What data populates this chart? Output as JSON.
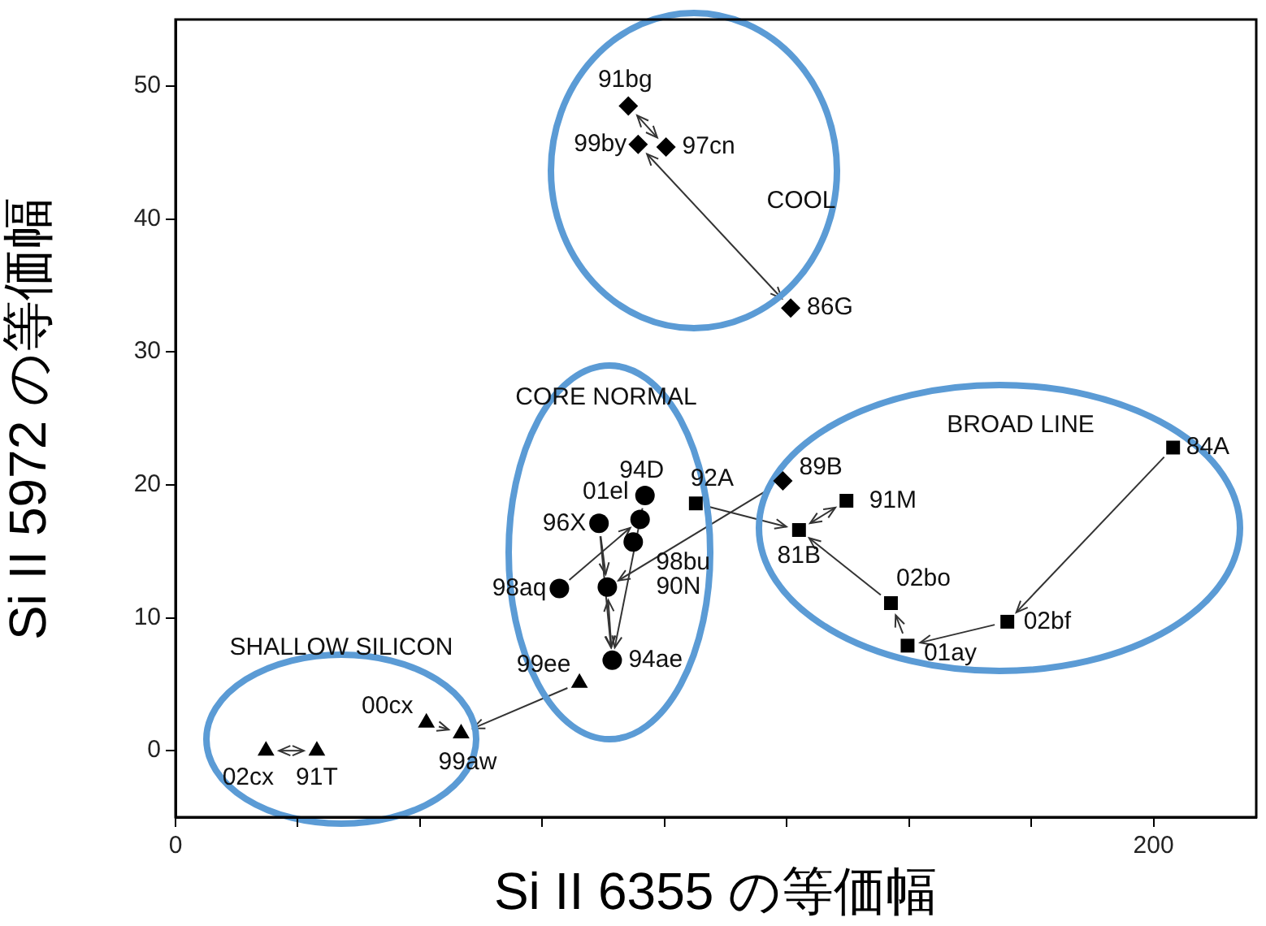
{
  "chart_data": {
    "type": "scatter",
    "xlabel": "Si II 6355 の等価幅",
    "ylabel": "Si II 5972 の等価幅",
    "xlim": [
      0,
      221
    ],
    "ylim": [
      -5,
      55
    ],
    "xticks": [
      0,
      {
        "value": 25,
        "label": null
      },
      {
        "value": 50,
        "label": null
      },
      {
        "value": 75,
        "label": null
      },
      {
        "value": 100,
        "label": null
      },
      {
        "value": 125,
        "label": null
      },
      {
        "value": 150,
        "label": null
      },
      {
        "value": 175,
        "label": null
      },
      200
    ],
    "yticks": [
      0,
      10,
      20,
      30,
      40,
      50
    ],
    "grid": false,
    "legend": false,
    "series": [
      {
        "color": "#000000",
        "marker": "diamond",
        "x": [
          92.6,
          94.6,
          100.3,
          125.8,
          124.2
        ],
        "values": [
          48.5,
          45.6,
          45.4,
          33.3,
          20.3
        ]
      },
      {
        "color": "#000000",
        "marker": "circle",
        "x": [
          96,
          95,
          86.6,
          93.6,
          88.3,
          78.5,
          89.3
        ],
        "values": [
          19.2,
          17.4,
          17.1,
          15.7,
          12.3,
          12.2,
          6.8
        ]
      },
      {
        "color": "#000000",
        "marker": "square",
        "x": [
          106.4,
          127.5,
          137.2,
          146.3,
          170.1,
          149.7,
          204
        ],
        "values": [
          18.6,
          16.6,
          18.8,
          11.1,
          9.7,
          7.9,
          22.8
        ]
      },
      {
        "color": "#000000",
        "marker": "triangle",
        "x": [
          18.5,
          28.9,
          51.3,
          58.4,
          82.6
        ],
        "values": [
          0,
          0,
          2.1,
          1.3,
          5.1
        ]
      }
    ],
    "annotations": [
      {
        "text": "91bg",
        "x": 92.6,
        "y": 48.5
      },
      {
        "text": "99by",
        "x": 94.6,
        "y": 45.6
      },
      {
        "text": "97cn",
        "x": 100.3,
        "y": 45.4
      },
      {
        "text": "86G",
        "x": 125.8,
        "y": 33.3
      },
      {
        "text": "89B",
        "x": 124.2,
        "y": 20.3
      },
      {
        "text": "94D",
        "x": 96,
        "y": 19.2
      },
      {
        "text": "01el",
        "x": 95,
        "y": 17.4
      },
      {
        "text": "96X",
        "x": 86.6,
        "y": 17.1
      },
      {
        "text": "98bu",
        "x": 93.6,
        "y": 15.7
      },
      {
        "text": "90N",
        "x": 88.3,
        "y": 12.3
      },
      {
        "text": "98aq",
        "x": 78.5,
        "y": 12.2
      },
      {
        "text": "94ae",
        "x": 89.3,
        "y": 6.8
      },
      {
        "text": "92A",
        "x": 106.4,
        "y": 18.6
      },
      {
        "text": "81B",
        "x": 127.5,
        "y": 16.6
      },
      {
        "text": "91M",
        "x": 137.2,
        "y": 18.8
      },
      {
        "text": "02bo",
        "x": 146.3,
        "y": 11.1
      },
      {
        "text": "02bf",
        "x": 170.1,
        "y": 9.7
      },
      {
        "text": "01ay",
        "x": 149.7,
        "y": 7.9
      },
      {
        "text": "84A",
        "x": 204,
        "y": 22.8
      },
      {
        "text": "02cx",
        "x": 18.5,
        "y": 0
      },
      {
        "text": "91T",
        "x": 28.9,
        "y": 0
      },
      {
        "text": "00cx",
        "x": 51.3,
        "y": 2.1
      },
      {
        "text": "99aw",
        "x": 58.4,
        "y": 1.3
      },
      {
        "text": "99ee",
        "x": 82.6,
        "y": 5.1
      },
      "COOL",
      "CORE NORMAL",
      "BROAD LINE",
      "SHALLOW SILICON"
    ]
  }
}
